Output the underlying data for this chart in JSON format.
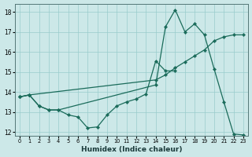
{
  "xlabel": "Humidex (Indice chaleur)",
  "bg_color": "#cce8e8",
  "grid_color": "#99cccc",
  "line_color": "#1a6b5a",
  "xlim": [
    -0.5,
    23.5
  ],
  "ylim": [
    11.8,
    18.4
  ],
  "xticks": [
    0,
    1,
    2,
    3,
    4,
    5,
    6,
    7,
    8,
    9,
    10,
    11,
    12,
    13,
    14,
    15,
    16,
    17,
    18,
    19,
    20,
    21,
    22,
    23
  ],
  "yticks": [
    12,
    13,
    14,
    15,
    16,
    17,
    18
  ],
  "line1_x": [
    0,
    1,
    2,
    3,
    4,
    5,
    6,
    7,
    8,
    9,
    10,
    11,
    12,
    13,
    14,
    15,
    16,
    17,
    18,
    19,
    20,
    21,
    22,
    23
  ],
  "line1_y": [
    13.75,
    13.85,
    13.3,
    13.1,
    13.1,
    12.85,
    12.75,
    12.2,
    12.25,
    12.85,
    13.3,
    13.5,
    13.65,
    13.9,
    15.55,
    15.05,
    15.05,
    null,
    null,
    null,
    null,
    null,
    null,
    null
  ],
  "line2_x": [
    0,
    1,
    2,
    3,
    4,
    14,
    15,
    16,
    17,
    18,
    19,
    20,
    21,
    22,
    23
  ],
  "line2_y": [
    13.75,
    13.85,
    13.3,
    13.1,
    13.1,
    14.35,
    17.25,
    18.1,
    17.0,
    17.4,
    16.85,
    15.15,
    13.5,
    11.9,
    11.85
  ],
  "line3_x": [
    0,
    1,
    14,
    15,
    16,
    17,
    18,
    19,
    20,
    21,
    22,
    23
  ],
  "line3_y": [
    13.75,
    13.85,
    14.6,
    14.85,
    15.2,
    15.5,
    15.8,
    16.1,
    16.55,
    16.75,
    16.85,
    16.85
  ]
}
